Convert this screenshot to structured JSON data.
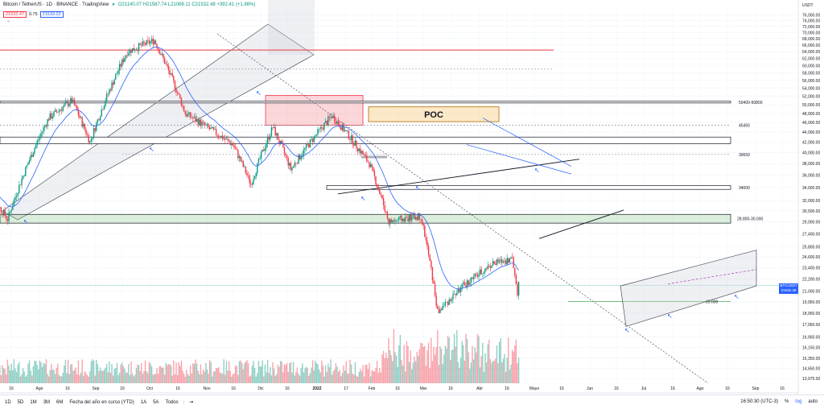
{
  "header": {
    "symbol": "Bitcoin / TetherUS · 1D · BINANCE · TradingView",
    "ohlc": "O21140.07 H21587.74 L21069.11 C21532.48 +392.41 (+1.86%)",
    "bid": "21532.47",
    "spread": "0.75",
    "ask": "21533.22",
    "collapse_icon": "chevron-up-icon"
  },
  "toolbar": {
    "ranges": [
      "1D",
      "5D",
      "1M",
      "3M",
      "6M",
      "Fecha del año en curso (YTD)",
      "1A",
      "5A",
      "Todos"
    ],
    "goto_icon": "calendar-goto-icon",
    "clock": "16:50:30 (UTC-3)",
    "percent": "%",
    "log": "log",
    "auto": "auto"
  },
  "price_badge": {
    "label": "BTCUSDT",
    "price": "21532.48",
    "countdown": "04:09:29"
  },
  "colors": {
    "up": "#089981",
    "down": "#f23645",
    "ema": "#2962ff",
    "resistance": "#f23645",
    "poc": "#f5a623",
    "zone": "#4caf50"
  },
  "chart_data": {
    "type": "candlestick",
    "symbol": "BTCUSDT",
    "interval": "1D",
    "currency": "USDT",
    "y_ticks": [
      76000,
      74000,
      72000,
      70000,
      68000,
      66000,
      64000,
      62000,
      60000,
      58000,
      56000,
      54000,
      52000,
      50000,
      48000,
      46000,
      44000,
      42000,
      40000,
      38000,
      36000,
      34000,
      32000,
      30500,
      29000,
      27400,
      25800,
      24600,
      23400,
      22200,
      21000,
      19950,
      18950,
      17950,
      16950,
      16150,
      15350,
      14650,
      13975
    ],
    "x_ticks": [
      "16",
      "Ago",
      "16",
      "Sep",
      "16",
      "Oct",
      "16",
      "Nov",
      "16",
      "Dic",
      "16",
      "2022",
      "17",
      "Feb",
      "16",
      "Mar",
      "16",
      "Abr",
      "16",
      "Mayo",
      "16",
      "Jun",
      "16",
      "Jul",
      "16",
      "Ago",
      "16",
      "Sep",
      "16"
    ],
    "last_price": 21532.48,
    "key_points": [
      {
        "date": "2021-07-20",
        "close": 29800
      },
      {
        "date": "2021-08-20",
        "close": 47000
      },
      {
        "date": "2021-09-07",
        "close": 51000
      },
      {
        "date": "2021-09-21",
        "close": 42000
      },
      {
        "date": "2021-10-20",
        "close": 64000
      },
      {
        "date": "2021-11-10",
        "close": 67500
      },
      {
        "date": "2021-12-04",
        "close": 48000
      },
      {
        "date": "2022-01-10",
        "close": 41500
      },
      {
        "date": "2022-01-24",
        "close": 34500
      },
      {
        "date": "2022-02-10",
        "close": 45000
      },
      {
        "date": "2022-02-24",
        "close": 37000
      },
      {
        "date": "2022-03-28",
        "close": 47500
      },
      {
        "date": "2022-04-26",
        "close": 38000
      },
      {
        "date": "2022-05-11",
        "close": 29000
      },
      {
        "date": "2022-06-05",
        "close": 29800
      },
      {
        "date": "2022-06-18",
        "close": 19000
      },
      {
        "date": "2022-07-08",
        "close": 21500
      },
      {
        "date": "2022-07-30",
        "close": 23800
      },
      {
        "date": "2022-08-15",
        "close": 24400
      },
      {
        "date": "2022-08-19",
        "close": 20900
      },
      {
        "date": "2022-08-20",
        "close": 21532
      }
    ],
    "levels": [
      {
        "label": "50400-50800",
        "from": 50400,
        "to": 50800
      },
      {
        "label": "45450",
        "value": 45450
      },
      {
        "label": "39650",
        "value": 39650
      },
      {
        "label": "34000",
        "value": 34000
      },
      {
        "label": "28.800-30.000",
        "from": 28800,
        "to": 30000
      },
      {
        "label": "20.000",
        "value": 20000
      }
    ],
    "annotations": [
      "POC"
    ],
    "volume": "bars"
  }
}
